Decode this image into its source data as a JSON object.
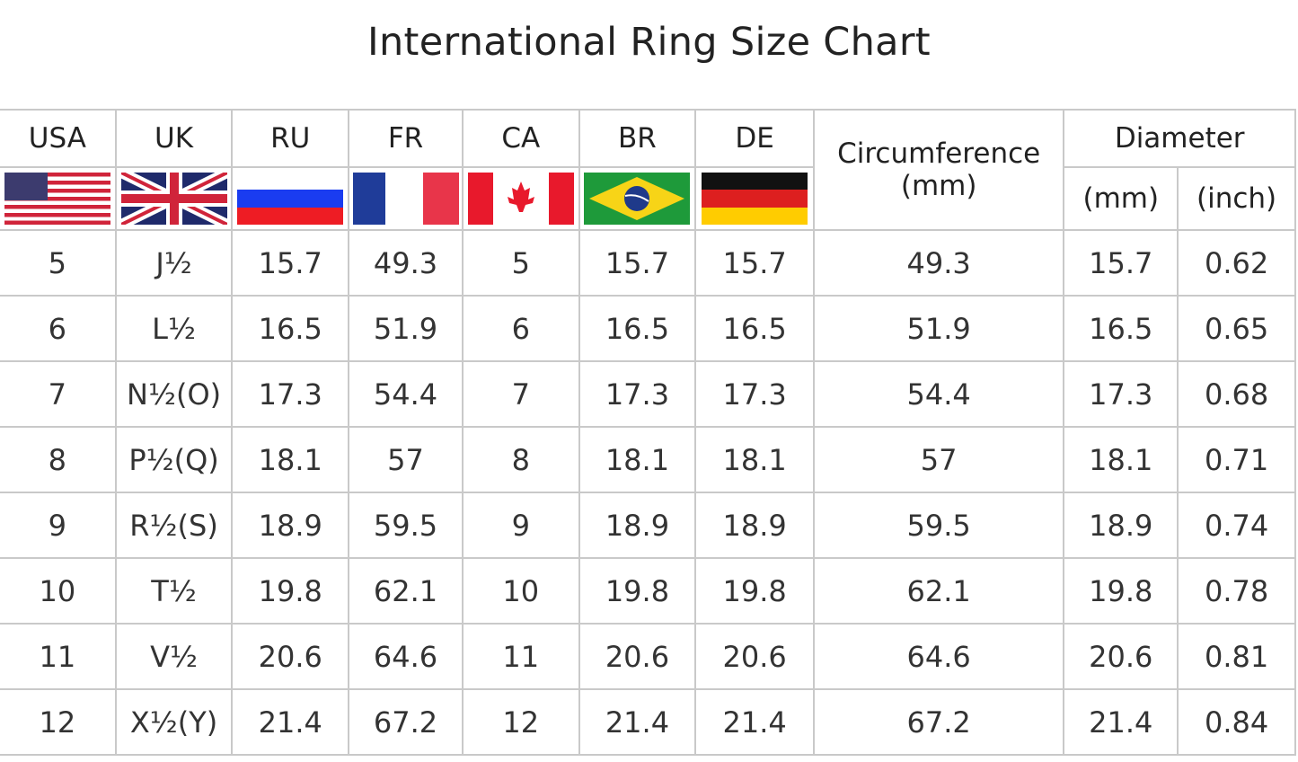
{
  "title": "International Ring Size Chart",
  "headers": {
    "usa": "USA",
    "uk": "UK",
    "ru": "RU",
    "fr": "FR",
    "ca": "CA",
    "br": "BR",
    "de": "DE",
    "circumference": "Circumference",
    "circumference_unit": "(mm)",
    "diameter": "Diameter",
    "diameter_mm": "(mm)",
    "diameter_inch": "(inch)"
  },
  "flags": [
    "us-flag-icon",
    "uk-flag-icon",
    "russia-flag-icon",
    "france-flag-icon",
    "canada-flag-icon",
    "brazil-flag-icon",
    "germany-flag-icon"
  ],
  "rows": [
    {
      "usa": "5",
      "uk": "J½",
      "ru": "15.7",
      "fr": "49.3",
      "ca": "5",
      "br": "15.7",
      "de": "15.7",
      "circ": "49.3",
      "dmm": "15.7",
      "din": "0.62"
    },
    {
      "usa": "6",
      "uk": "L½",
      "ru": "16.5",
      "fr": "51.9",
      "ca": "6",
      "br": "16.5",
      "de": "16.5",
      "circ": "51.9",
      "dmm": "16.5",
      "din": "0.65"
    },
    {
      "usa": "7",
      "uk": "N½(O)",
      "ru": "17.3",
      "fr": "54.4",
      "ca": "7",
      "br": "17.3",
      "de": "17.3",
      "circ": "54.4",
      "dmm": "17.3",
      "din": "0.68"
    },
    {
      "usa": "8",
      "uk": "P½(Q)",
      "ru": "18.1",
      "fr": "57",
      "ca": "8",
      "br": "18.1",
      "de": "18.1",
      "circ": "57",
      "dmm": "18.1",
      "din": "0.71"
    },
    {
      "usa": "9",
      "uk": "R½(S)",
      "ru": "18.9",
      "fr": "59.5",
      "ca": "9",
      "br": "18.9",
      "de": "18.9",
      "circ": "59.5",
      "dmm": "18.9",
      "din": "0.74"
    },
    {
      "usa": "10",
      "uk": "T½",
      "ru": "19.8",
      "fr": "62.1",
      "ca": "10",
      "br": "19.8",
      "de": "19.8",
      "circ": "62.1",
      "dmm": "19.8",
      "din": "0.78"
    },
    {
      "usa": "11",
      "uk": "V½",
      "ru": "20.6",
      "fr": "64.6",
      "ca": "11",
      "br": "20.6",
      "de": "20.6",
      "circ": "64.6",
      "dmm": "20.6",
      "din": "0.81"
    },
    {
      "usa": "12",
      "uk": "X½(Y)",
      "ru": "21.4",
      "fr": "67.2",
      "ca": "12",
      "br": "21.4",
      "de": "21.4",
      "circ": "67.2",
      "dmm": "21.4",
      "din": "0.84"
    }
  ]
}
